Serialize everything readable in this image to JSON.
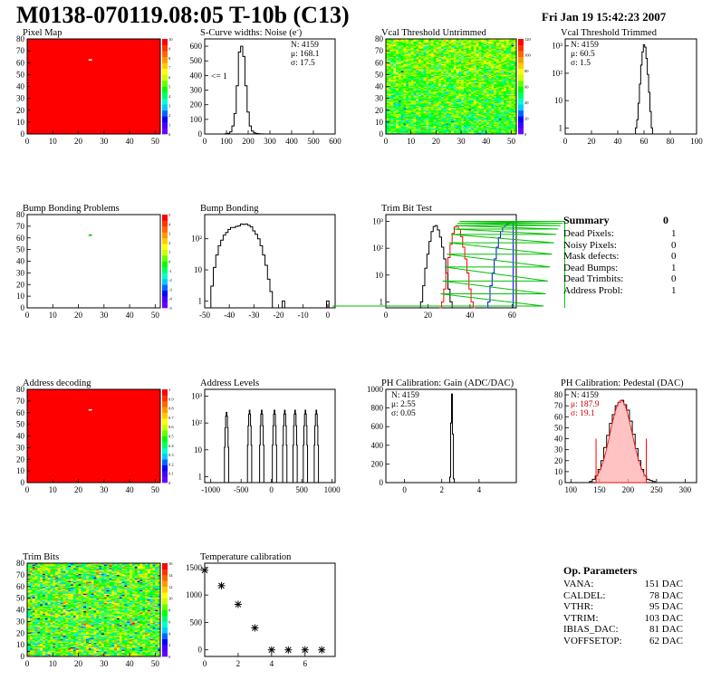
{
  "header": {
    "title": "M0138-070119.08:05 T-10b (C13)",
    "datetime": "Fri Jan 19 15:42:23 2007"
  },
  "colors": {
    "red": "#ff0000",
    "green": "#00c000",
    "blue": "#0000ff",
    "black": "#000000",
    "stat_red": "#cc0000"
  },
  "chart_data": [
    {
      "id": "pixel_map",
      "type": "heatmap",
      "title": "Pixel Map",
      "xlim": [
        0,
        52
      ],
      "ylim": [
        0,
        80
      ],
      "xticks": [
        "0",
        "10",
        "20",
        "30",
        "40",
        "50"
      ],
      "yticks": [
        "0",
        "10",
        "20",
        "30",
        "40",
        "50",
        "60",
        "70",
        "80"
      ],
      "palette_ticks": [
        "0",
        "1",
        "2",
        "3",
        "4",
        "5",
        "6",
        "7",
        "8",
        "9",
        "10"
      ],
      "fill_value": 10,
      "outliers": [
        {
          "x": 24,
          "y": 63,
          "value": 0
        }
      ]
    },
    {
      "id": "scurve_noise",
      "type": "line",
      "title": "S-Curve widths: Noise (e",
      "title_suffix": ")",
      "title_superscript": "-",
      "xlim": [
        0,
        600
      ],
      "ylim": [
        0,
        650
      ],
      "xticks": [
        "0",
        "100",
        "200",
        "300",
        "400",
        "500",
        "600"
      ],
      "yticks": [
        "0",
        "100",
        "200",
        "300",
        "400",
        "500",
        "600"
      ],
      "stats": {
        "N": "N: 4159",
        "mean": "μ: 168.1",
        "sigma": "σ: 17.5"
      },
      "annotation": "<= 1",
      "x": [
        90,
        100,
        110,
        120,
        130,
        140,
        150,
        160,
        170,
        180,
        190,
        200,
        210,
        220,
        230,
        240,
        250,
        260,
        270,
        280,
        290
      ],
      "values": [
        0,
        2,
        5,
        15,
        55,
        140,
        330,
        560,
        600,
        530,
        330,
        150,
        55,
        20,
        8,
        4,
        2,
        1,
        1,
        0,
        0
      ]
    },
    {
      "id": "vcal_untrimmed",
      "type": "heatmap",
      "title": "Vcal Threshold Untrimmed",
      "xlim": [
        0,
        52
      ],
      "ylim": [
        0,
        80
      ],
      "xticks": [
        "0",
        "10",
        "20",
        "30",
        "40",
        "50"
      ],
      "yticks": [
        "0",
        "10",
        "20",
        "30",
        "40",
        "50",
        "60",
        "70",
        "80"
      ],
      "palette_ticks": [
        "0",
        "20",
        "40",
        "60",
        "80",
        "100",
        "120"
      ],
      "mean": 60,
      "spread": 12
    },
    {
      "id": "vcal_trimmed",
      "type": "line",
      "title": "Vcal Threshold Trimmed",
      "log_y": true,
      "xlim": [
        0,
        100
      ],
      "ylim": [
        0.6,
        1800
      ],
      "xticks": [
        "0",
        "20",
        "40",
        "60",
        "80",
        "100"
      ],
      "yticks": [
        "1",
        "10",
        "10²",
        "10³"
      ],
      "stats": {
        "N": "N: 4159",
        "mean": "μ: 60.5",
        "sigma": "σ:  1.5"
      },
      "x": [
        54,
        55,
        56,
        57,
        58,
        59,
        60,
        61,
        62,
        63,
        64,
        65,
        66,
        67
      ],
      "values": [
        1,
        2,
        8,
        40,
        200,
        600,
        1100,
        900,
        350,
        90,
        20,
        4,
        1,
        0
      ]
    },
    {
      "id": "bump_bonding_problems",
      "type": "heatmap",
      "title": "Bump Bonding Problems",
      "xlim": [
        0,
        52
      ],
      "ylim": [
        0,
        80
      ],
      "xticks": [
        "0",
        "10",
        "20",
        "30",
        "40",
        "50"
      ],
      "yticks": [
        "0",
        "10",
        "20",
        "30",
        "40",
        "50",
        "60",
        "70",
        "80"
      ],
      "palette_ticks": [
        "-5",
        "-4",
        "-3",
        "-2",
        "-1",
        "0",
        "1",
        "2",
        "3",
        "4",
        "5"
      ],
      "fill_value": null,
      "outliers": [
        {
          "x": 24,
          "y": 63,
          "value": 1
        }
      ]
    },
    {
      "id": "bump_bonding",
      "type": "line",
      "title": "Bump Bonding",
      "log_y": true,
      "xlim": [
        -50,
        3
      ],
      "ylim": [
        0.6,
        600
      ],
      "xticks": [
        "-50",
        "-40",
        "-30",
        "-20",
        "-10",
        "0"
      ],
      "yticks": [
        "1",
        "10",
        "10²"
      ],
      "x": [
        -48,
        -47,
        -46,
        -45,
        -44,
        -43,
        -42,
        -41,
        -40,
        -39,
        -38,
        -37,
        -36,
        -35,
        -34,
        -33,
        -32,
        -31,
        -30,
        -29,
        -28,
        -27,
        -26,
        -25,
        -24,
        -23,
        -22,
        -21,
        -20,
        -19,
        -18,
        -17,
        -16,
        -15,
        -14,
        -13,
        -12,
        -11,
        -10,
        -9,
        -8,
        -7,
        -6,
        -5,
        -4,
        -3,
        -2,
        -1,
        0,
        1,
        2
      ],
      "values": [
        0,
        3,
        12,
        30,
        60,
        90,
        130,
        160,
        200,
        230,
        230,
        250,
        260,
        300,
        290,
        300,
        270,
        240,
        180,
        140,
        100,
        60,
        30,
        14,
        5,
        2,
        0,
        0,
        0,
        0,
        1,
        0,
        0,
        0,
        0,
        0,
        0,
        0,
        0,
        0,
        0,
        0,
        0,
        0,
        0,
        0,
        0,
        0,
        1,
        0,
        0
      ]
    },
    {
      "id": "trim_bit_test",
      "type": "line",
      "title": "Trim Bit Test",
      "log_y": true,
      "xlim": [
        0,
        62
      ],
      "ylim": [
        0.6,
        1800
      ],
      "xticks": [
        "0",
        "20",
        "40",
        "60"
      ],
      "yticks": [
        "1",
        "10",
        "10²",
        "10³"
      ],
      "series": [
        {
          "color": "black",
          "x": [
            16,
            17,
            18,
            19,
            20,
            21,
            22,
            23,
            24,
            25,
            26,
            27,
            28,
            29,
            30,
            31,
            32
          ],
          "values": [
            0,
            1,
            4,
            18,
            60,
            180,
            420,
            650,
            700,
            480,
            260,
            110,
            40,
            12,
            3,
            1,
            0
          ]
        },
        {
          "color": "red",
          "x": [
            26,
            27,
            28,
            29,
            30,
            31,
            32,
            33,
            34,
            35,
            36,
            37,
            38,
            39,
            40,
            41,
            42
          ],
          "values": [
            0,
            1,
            3,
            12,
            45,
            140,
            360,
            620,
            680,
            500,
            270,
            110,
            40,
            12,
            3,
            1,
            0
          ]
        },
        {
          "color": "blue",
          "x": [
            48,
            49,
            50,
            51,
            52,
            53,
            54,
            55,
            56,
            57,
            58,
            59,
            60
          ],
          "values": [
            0,
            1,
            4,
            12,
            40,
            110,
            250,
            420,
            600,
            700,
            800,
            900,
            1000
          ]
        },
        {
          "color": "green",
          "x": [
            0,
            50,
            51,
            52,
            53,
            54,
            55,
            56,
            57,
            58,
            59,
            60
          ],
          "values": [
            0.7,
            0.7,
            2,
            6,
            20,
            60,
            160,
            330,
            520,
            700,
            850,
            1000
          ]
        }
      ]
    },
    {
      "id": "address_decoding",
      "type": "heatmap",
      "title": "Address decoding",
      "xlim": [
        0,
        52
      ],
      "ylim": [
        0,
        80
      ],
      "xticks": [
        "0",
        "10",
        "20",
        "30",
        "40",
        "50"
      ],
      "yticks": [
        "0",
        "10",
        "20",
        "30",
        "40",
        "50",
        "60",
        "70",
        "80"
      ],
      "palette_ticks": [
        "0",
        "0.1",
        "0.2",
        "0.3",
        "0.4",
        "0.5",
        "0.6",
        "0.7",
        "0.8",
        "0.9",
        "1"
      ],
      "fill_value": 1,
      "outliers": [
        {
          "x": 24,
          "y": 63,
          "value": 0
        }
      ]
    },
    {
      "id": "address_levels",
      "type": "line",
      "title": "Address Levels",
      "log_y": true,
      "xlim": [
        -1100,
        1050
      ],
      "ylim": [
        0.6,
        1800
      ],
      "xticks": [
        "-1000",
        "-500",
        "0",
        "500",
        "1000"
      ],
      "yticks": [
        "1",
        "10",
        "10²",
        "10³"
      ],
      "peaks": [
        {
          "center": -740,
          "height": 250
        },
        {
          "center": -360,
          "height": 300
        },
        {
          "center": -160,
          "height": 300
        },
        {
          "center": 50,
          "height": 300
        },
        {
          "center": 220,
          "height": 300
        },
        {
          "center": 390,
          "height": 300
        },
        {
          "center": 560,
          "height": 300
        },
        {
          "center": 740,
          "height": 300
        }
      ]
    },
    {
      "id": "ph_gain",
      "type": "line",
      "title": "PH Calibration: Gain (ADC/DAC)",
      "xlim": [
        -1,
        6
      ],
      "ylim": [
        0,
        1000
      ],
      "xticks": [
        "0",
        "2",
        "4"
      ],
      "yticks": [
        "0",
        "200",
        "400",
        "600",
        "800",
        "1000"
      ],
      "stats": {
        "N": "N: 4159",
        "mean": "μ: 2.55",
        "sigma": "σ: 0.05"
      },
      "x": [
        2.4,
        2.45,
        2.5,
        2.55,
        2.6,
        2.65,
        2.7
      ],
      "values": [
        0,
        60,
        640,
        950,
        520,
        40,
        0
      ]
    },
    {
      "id": "ph_pedestal",
      "type": "line",
      "title": "PH Calibration: Pedestal (DAC)",
      "xlim": [
        90,
        320
      ],
      "ylim": [
        0,
        85
      ],
      "xticks": [
        "100",
        "150",
        "200",
        "250",
        "300"
      ],
      "yticks": [
        "0",
        "10",
        "20",
        "30",
        "40",
        "50",
        "60",
        "70",
        "80"
      ],
      "stats": {
        "N": "N: 4159",
        "mean": "μ: 187.9",
        "sigma": "σ: 19.1"
      },
      "fit_lines": [
        144,
        232
      ],
      "x": [
        135,
        140,
        145,
        150,
        155,
        160,
        165,
        170,
        175,
        180,
        185,
        190,
        195,
        200,
        205,
        210,
        215,
        220,
        225,
        230,
        235,
        240,
        245,
        250
      ],
      "values": [
        1,
        3,
        6,
        12,
        20,
        32,
        43,
        54,
        62,
        70,
        73,
        75,
        71,
        66,
        56,
        44,
        31,
        20,
        12,
        6,
        3,
        2,
        1,
        0
      ]
    },
    {
      "id": "trim_bits",
      "type": "heatmap",
      "title": "Trim Bits",
      "xlim": [
        0,
        52
      ],
      "ylim": [
        0,
        80
      ],
      "xticks": [
        "0",
        "10",
        "20",
        "30",
        "40",
        "50"
      ],
      "yticks": [
        "0",
        "10",
        "20",
        "30",
        "40",
        "50",
        "60",
        "70",
        "80"
      ],
      "palette_ticks": [
        "0",
        "2",
        "4",
        "6",
        "8",
        "10",
        "12",
        "14",
        "16"
      ],
      "mean": 8,
      "spread": 2.2
    },
    {
      "id": "temperature_calibration",
      "type": "scatter",
      "title": "Temperature calibration",
      "xlim": [
        0,
        7.8
      ],
      "ylim": [
        -120,
        1580
      ],
      "xticks": [
        "0",
        "2",
        "4",
        "6"
      ],
      "yticks": [
        "0",
        "500",
        "1000",
        "1500"
      ],
      "x": [
        0,
        1,
        2,
        3,
        4,
        5,
        6,
        7
      ],
      "values": [
        1450,
        1170,
        830,
        400,
        0,
        0,
        0,
        0
      ]
    }
  ],
  "summary": {
    "title": "Summary",
    "total": "0",
    "rows": [
      {
        "label": "Dead Pixels:",
        "value": "1"
      },
      {
        "label": "Noisy Pixels:",
        "value": "0"
      },
      {
        "label": "Mask defects:",
        "value": "0"
      },
      {
        "label": "Dead Bumps:",
        "value": "1"
      },
      {
        "label": "Dead Trimbits:",
        "value": "0"
      },
      {
        "label": "Address Probl:",
        "value": "1"
      }
    ]
  },
  "op_parameters": {
    "title": "Op. Parameters",
    "rows": [
      {
        "label": "VANA:",
        "value": "151 DAC"
      },
      {
        "label": "CALDEL:",
        "value": "78 DAC"
      },
      {
        "label": "VTHR:",
        "value": "95 DAC"
      },
      {
        "label": "VTRIM:",
        "value": "103 DAC"
      },
      {
        "label": "IBIAS_DAC:",
        "value": "81 DAC"
      },
      {
        "label": "VOFFSETOP:",
        "value": "62 DAC"
      }
    ]
  }
}
